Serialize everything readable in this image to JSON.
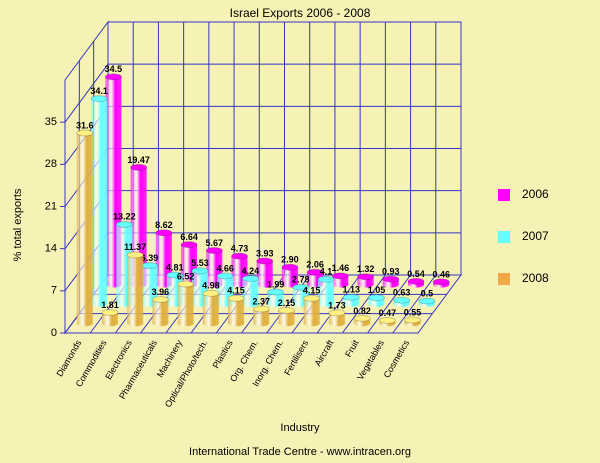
{
  "chart_data": {
    "type": "bar3d",
    "title": "Israel Exports  2006 - 2008",
    "y_label": "% total exports",
    "x_label": "Industry",
    "source": "International Trade Centre -  www.intracen.org",
    "categories": [
      "Diamonds",
      "Commodities",
      "Electronics",
      "Pharmaceuticals",
      "Machinery",
      "Optical/Photo/tech.",
      "Plastics",
      "Org. Chem.",
      "Inorg. Chem.",
      "Fertilisers",
      "Aircraft",
      "Fruit",
      "Vegetables",
      "Cosmetics"
    ],
    "series": [
      {
        "name": "2006",
        "color": "#ff00ff",
        "values": [
          34.5,
          19.47,
          8.62,
          6.64,
          5.67,
          4.73,
          3.93,
          2.9,
          2.06,
          1.46,
          1.32,
          0.93,
          0.54,
          0.46
        ],
        "value_labels": [
          "34.5",
          "19.47",
          "8.62",
          "6.64",
          "5.67",
          "4.73",
          "3.93",
          "2.90",
          "2.06",
          "1.46",
          "1.32",
          "0.93",
          "0.54",
          "0.46"
        ]
      },
      {
        "name": "2007",
        "color": "#66ffff",
        "values": [
          34.1,
          13.22,
          6.39,
          4.81,
          5.53,
          4.66,
          4.24,
          1.99,
          2.78,
          4.1,
          1.13,
          1.05,
          0.63,
          0.5
        ],
        "value_labels": [
          "34.1",
          "13.22",
          "6.39",
          "4.81",
          "5.53",
          "4.66",
          "4.24",
          "1.99",
          "2.78",
          "4.1",
          "1.13",
          "1.05",
          "0.63",
          "0.5"
        ]
      },
      {
        "name": "2008",
        "color": "#f0a848",
        "values": [
          31.6,
          1.81,
          11.37,
          3.96,
          6.52,
          4.98,
          4.15,
          2.37,
          2.15,
          4.15,
          1.73,
          0.82,
          0.47,
          0.55
        ],
        "value_labels": [
          "31.6",
          "1.81",
          "11.37",
          "3.96",
          "6.52",
          "4.98",
          "4.15",
          "2.37",
          "2.15",
          "4.15",
          "1.73",
          "0.82",
          "0.47",
          "0.55"
        ]
      }
    ],
    "bar_color": "#e0b040",
    "ylim": [
      0,
      42
    ],
    "yticks": [
      0,
      7,
      14,
      21,
      28,
      35
    ],
    "grid": true,
    "legend": "right"
  }
}
